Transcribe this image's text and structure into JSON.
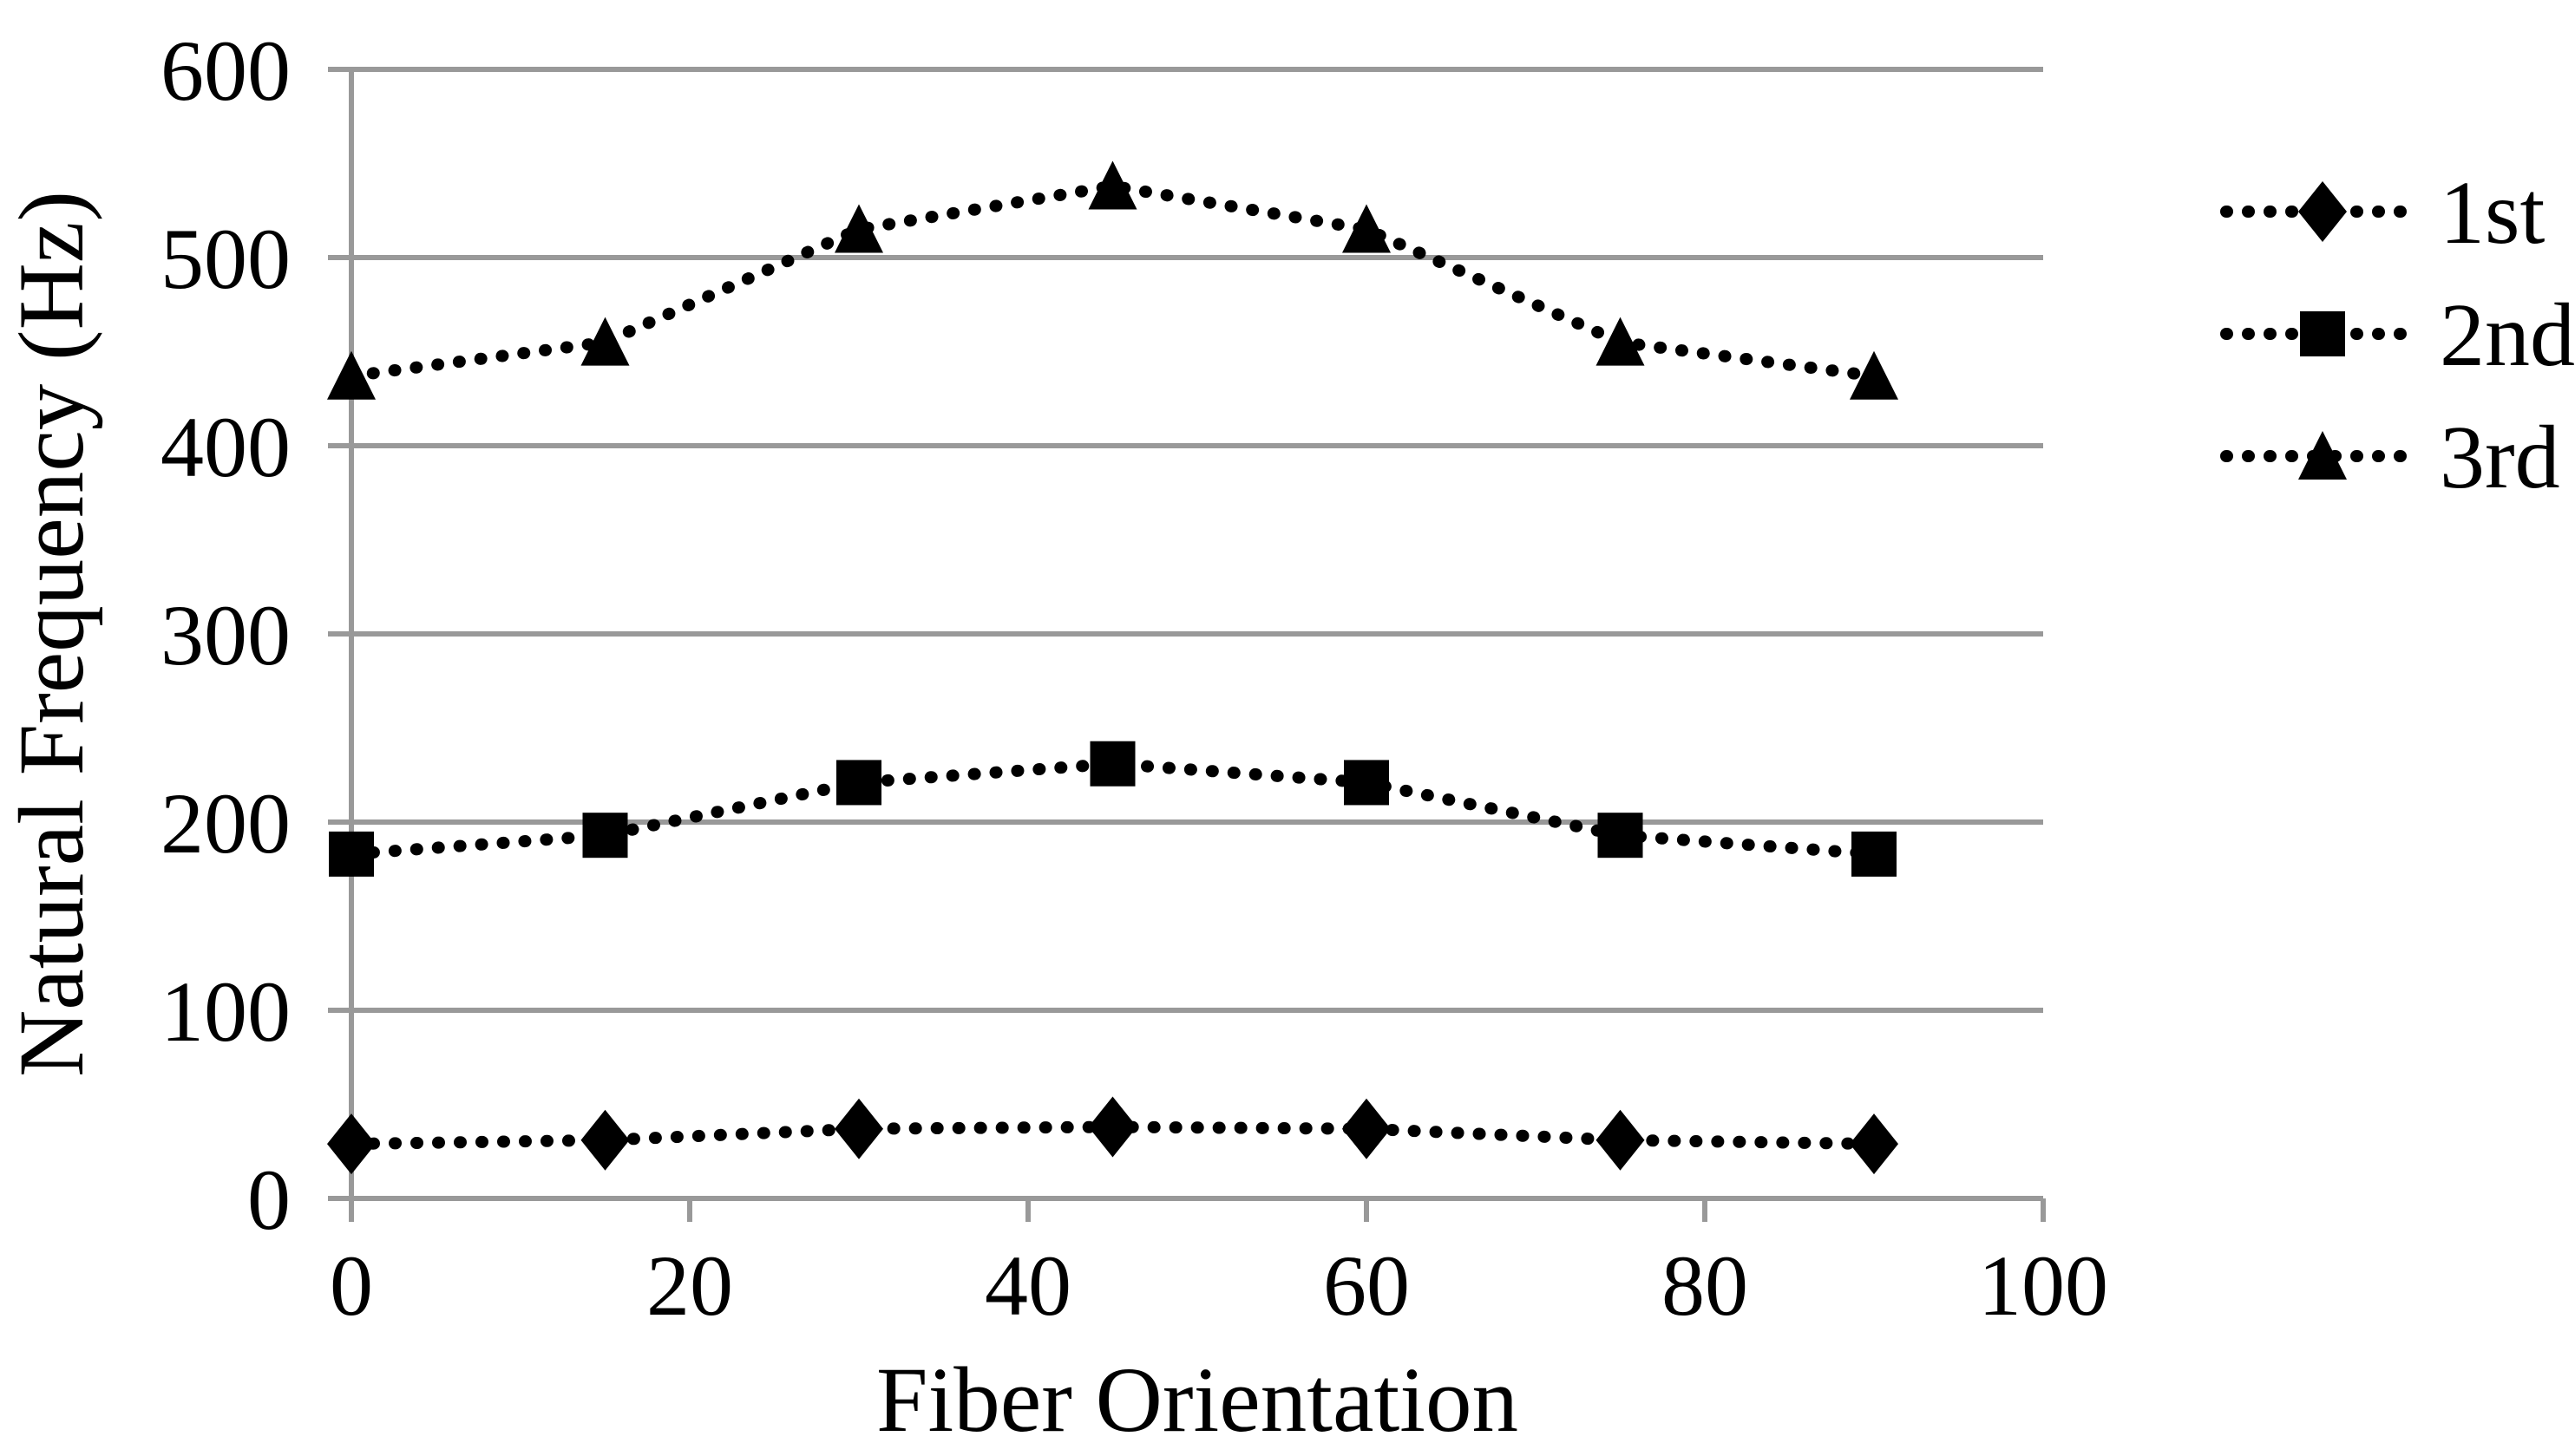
{
  "chart_data": {
    "type": "line",
    "title": "",
    "xlabel": "Fiber Orientation",
    "ylabel": "Natural Frequency (Hz)",
    "x": [
      0,
      15,
      30,
      45,
      60,
      75,
      90
    ],
    "series": [
      {
        "name": "1st",
        "marker": "diamond",
        "values": [
          29,
          31,
          37,
          38,
          37,
          31,
          29
        ]
      },
      {
        "name": "2nd",
        "marker": "square",
        "values": [
          183,
          193,
          221,
          231,
          221,
          193,
          183
        ]
      },
      {
        "name": "3rd",
        "marker": "triangle",
        "values": [
          437,
          455,
          515,
          538,
          515,
          455,
          437
        ]
      }
    ],
    "xlim": [
      0,
      100
    ],
    "ylim": [
      0,
      600
    ],
    "x_ticks": [
      0,
      20,
      40,
      60,
      80,
      100
    ],
    "y_ticks": [
      0,
      100,
      200,
      300,
      400,
      500,
      600
    ],
    "grid": "horizontal-only",
    "line_style": "dotted",
    "legend_position": "right",
    "colors": {
      "series": "#000000",
      "grid": "#999999",
      "text": "#000000",
      "background": "#ffffff"
    }
  }
}
